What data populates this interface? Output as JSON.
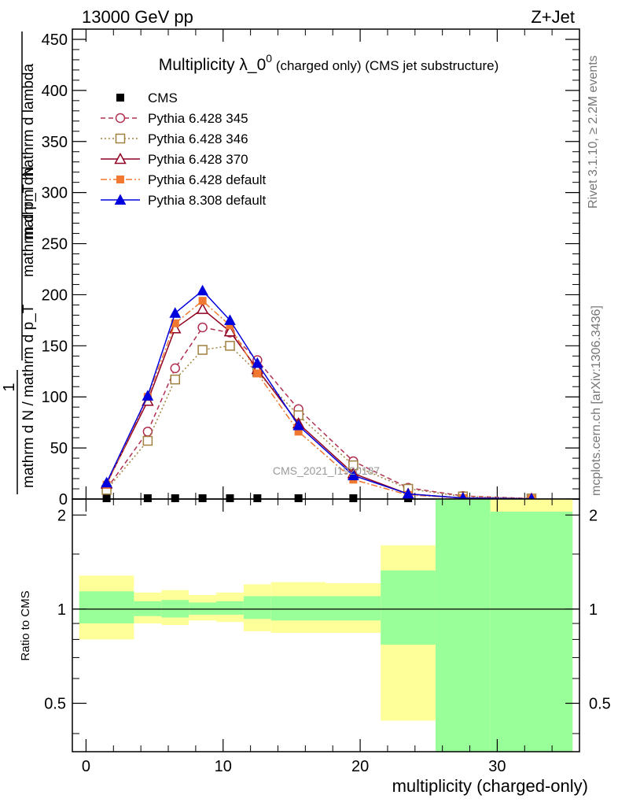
{
  "header": {
    "left": "13000 GeV pp",
    "right": "Z+Jet"
  },
  "side_texts": {
    "rivet": "Rivet 3.1.10, ≥ 2.2M events",
    "mcplots": "mcplots.cern.ch [arXiv:1306.3436]"
  },
  "watermark": "CMS_2021_I1920187",
  "chart_data": [
    {
      "type": "line",
      "title_main": "Multiplicity λ_0",
      "title_sup": "0",
      "title_rest": " (charged only) (CMS jet substructure)",
      "ylabel_line1": "1",
      "ylabel_num": "mathrm dN",
      "ylabel_den": "mathrm d p_T mathrm d lambda",
      "ylabel_num2": "mathrm d N / mathrm d p_T",
      "ylim": [
        0,
        460
      ],
      "yticks": [
        0,
        50,
        100,
        150,
        200,
        250,
        300,
        350,
        400,
        450
      ],
      "xlim": [
        -1,
        36
      ],
      "legend_position": "top-left",
      "series": [
        {
          "name": "CMS",
          "color": "#000000",
          "marker": "filled-square",
          "dash": "none",
          "x": [
            1.5,
            4.5,
            6.5,
            8.5,
            10.5,
            12.5,
            15.5,
            19.5,
            23.5,
            27.5,
            32.5
          ],
          "y": [
            0,
            0,
            0,
            0,
            0,
            0,
            0,
            0,
            0,
            0,
            0
          ]
        },
        {
          "name": "Pythia 6.428 345",
          "color": "#b03050",
          "marker": "open-circle",
          "dash": "6,4",
          "x": [
            1.5,
            4.5,
            6.5,
            8.5,
            10.5,
            12.5,
            15.5,
            19.5,
            23.5,
            27.5,
            32.5
          ],
          "y": [
            10,
            66,
            128,
            168,
            163,
            136,
            88,
            37,
            11,
            3,
            0.5
          ]
        },
        {
          "name": "Pythia 6.428 346",
          "color": "#a08040",
          "marker": "open-square",
          "dash": "2,3",
          "x": [
            1.5,
            4.5,
            6.5,
            8.5,
            10.5,
            12.5,
            15.5,
            19.5,
            23.5,
            27.5,
            32.5
          ],
          "y": [
            9,
            57,
            117,
            146,
            150,
            124,
            82,
            33,
            10,
            2.5,
            0.5
          ]
        },
        {
          "name": "Pythia 6.428 370",
          "color": "#900020",
          "marker": "open-triangle",
          "dash": "none",
          "x": [
            1.5,
            4.5,
            6.5,
            8.5,
            10.5,
            12.5,
            15.5,
            19.5,
            23.5,
            27.5,
            32.5
          ],
          "y": [
            15,
            96,
            167,
            186,
            164,
            127,
            74,
            25,
            5,
            1,
            0.2
          ]
        },
        {
          "name": "Pythia 6.428 default",
          "color": "#f07830",
          "marker": "filled-square",
          "dash": "8,3,2,3",
          "x": [
            1.5,
            4.5,
            6.5,
            8.5,
            10.5,
            12.5,
            15.5,
            19.5,
            23.5,
            27.5,
            32.5
          ],
          "y": [
            14,
            100,
            172,
            194,
            170,
            123,
            66,
            19,
            4,
            1,
            0.2
          ]
        },
        {
          "name": "Pythia 8.308 default",
          "color": "#0000dd",
          "marker": "filled-triangle",
          "dash": "none",
          "x": [
            1.5,
            4.5,
            6.5,
            8.5,
            10.5,
            12.5,
            15.5,
            19.5,
            23.5,
            27.5,
            32.5
          ],
          "y": [
            16,
            101,
            182,
            204,
            175,
            133,
            72,
            23,
            5,
            1,
            0.2
          ]
        }
      ]
    },
    {
      "type": "area",
      "ylabel": "Ratio to CMS",
      "xlabel": "multiplicity (charged-only)",
      "xlim": [
        -1,
        36
      ],
      "ylim": [
        0.35,
        2.25
      ],
      "log_y": true,
      "yticks": [
        0.5,
        1,
        2
      ],
      "yticks_labels": [
        "0.5",
        "1",
        "2"
      ],
      "xticks": [
        0,
        10,
        20,
        30
      ],
      "xticks_labels": [
        "0",
        "10",
        "20",
        "30"
      ],
      "reference_line": 1,
      "bands": {
        "stat_color": "#99ff99",
        "total_color": "#ffff99",
        "bins": [
          {
            "lo": -0.5,
            "hi": 3.5,
            "stat": [
              0.9,
              1.14
            ],
            "total": [
              0.8,
              1.28
            ]
          },
          {
            "lo": 3.5,
            "hi": 5.5,
            "stat": [
              0.95,
              1.06
            ],
            "total": [
              0.9,
              1.13
            ]
          },
          {
            "lo": 5.5,
            "hi": 7.5,
            "stat": [
              0.94,
              1.07
            ],
            "total": [
              0.89,
              1.15
            ]
          },
          {
            "lo": 7.5,
            "hi": 9.5,
            "stat": [
              0.96,
              1.05
            ],
            "total": [
              0.92,
              1.11
            ]
          },
          {
            "lo": 9.5,
            "hi": 11.5,
            "stat": [
              0.96,
              1.06
            ],
            "total": [
              0.91,
              1.13
            ]
          },
          {
            "lo": 11.5,
            "hi": 13.5,
            "stat": [
              0.93,
              1.1
            ],
            "total": [
              0.85,
              1.2
            ]
          },
          {
            "lo": 13.5,
            "hi": 17.5,
            "stat": [
              0.92,
              1.1
            ],
            "total": [
              0.84,
              1.22
            ]
          },
          {
            "lo": 17.5,
            "hi": 21.5,
            "stat": [
              0.92,
              1.1
            ],
            "total": [
              0.84,
              1.21
            ]
          },
          {
            "lo": 21.5,
            "hi": 25.5,
            "stat": [
              0.77,
              1.33
            ],
            "total": [
              0.44,
              1.6
            ]
          },
          {
            "lo": 25.5,
            "hi": 29.5,
            "stat": [
              0.35,
              2.25
            ],
            "total": [
              0.35,
              2.25
            ]
          },
          {
            "lo": 29.5,
            "hi": 35.5,
            "stat": [
              0.35,
              2.05
            ],
            "total": [
              0.35,
              2.25
            ]
          }
        ]
      }
    }
  ]
}
